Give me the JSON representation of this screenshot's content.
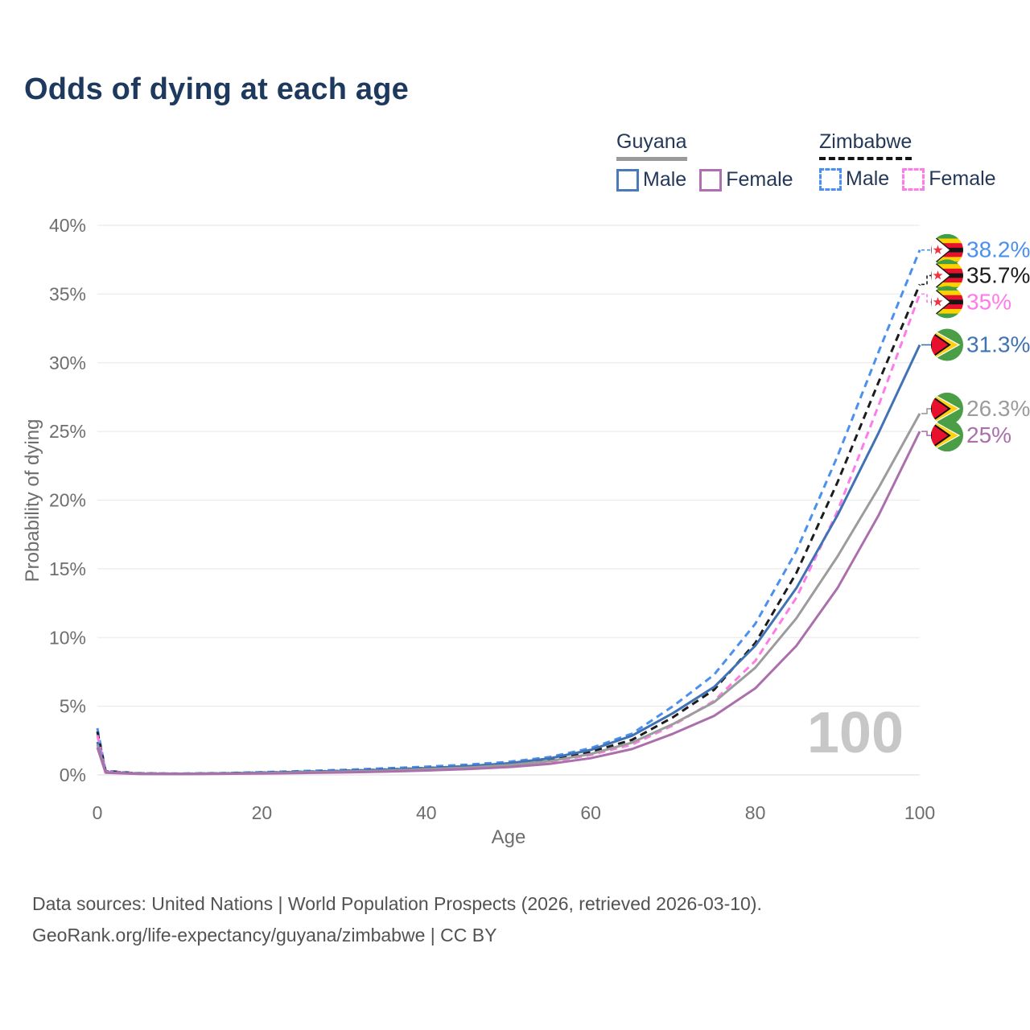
{
  "title": "Odds of dying at each age",
  "legend": {
    "groups": [
      {
        "country": "Guyana",
        "entries": [
          {
            "label": "Male"
          },
          {
            "label": "Female"
          }
        ]
      },
      {
        "country": "Zimbabwe",
        "entries": [
          {
            "label": "Male"
          },
          {
            "label": "Female"
          }
        ]
      }
    ]
  },
  "watermark": "100",
  "footer": {
    "line1": "Data sources: United Nations | World Population Prospects (2026, retrieved 2026-03-10).",
    "line2": "GeoRank.org/life-expectancy/guyana/zimbabwe | CC BY"
  },
  "icons": {
    "zimbabwe_flag": "zimbabwe-flag-icon",
    "guyana_flag": "guyana-flag-icon"
  },
  "colors": {
    "title": "#1d3a5e",
    "guyana_male": "#4173b4",
    "guyana_female": "#ab6fab",
    "guyana_combined": "#9c9c9c",
    "zimbabwe_male": "#4a90f0",
    "zimbabwe_female": "#ff7ce8",
    "zimbabwe_combined": "#1c1c1c",
    "gridline": "#ebebeb",
    "axis_text": "#6e6e6e",
    "watermark": "#c7c7c7",
    "footer_text": "#525252"
  },
  "chart_data": {
    "type": "line",
    "title": "Odds of dying at each age",
    "xlabel": "Age",
    "ylabel": "Probability of dying",
    "xlim": [
      0,
      100
    ],
    "ylim": [
      0,
      40
    ],
    "grid": "horizontal",
    "legend_position": "top-right",
    "x_ticks": [
      0,
      20,
      40,
      60,
      80,
      100
    ],
    "x_tick_labels": [
      "0",
      "20",
      "40",
      "60",
      "80",
      "100"
    ],
    "y_ticks": [
      0,
      5,
      10,
      15,
      20,
      25,
      30,
      35,
      40
    ],
    "y_tick_labels": [
      "0%",
      "5%",
      "10%",
      "15%",
      "20%",
      "25%",
      "30%",
      "35%",
      "40%"
    ],
    "x": [
      0,
      1,
      5,
      10,
      15,
      20,
      25,
      30,
      35,
      40,
      45,
      50,
      55,
      60,
      65,
      70,
      75,
      80,
      85,
      90,
      95,
      100
    ],
    "series": [
      {
        "name": "Zimbabwe Male",
        "country": "Zimbabwe",
        "sex": "male",
        "style": "dashed",
        "color": "#4a90f0",
        "end_label": "38.2%",
        "values": [
          3.4,
          0.3,
          0.12,
          0.1,
          0.13,
          0.2,
          0.28,
          0.37,
          0.48,
          0.6,
          0.75,
          0.95,
          1.3,
          1.95,
          3.0,
          5.0,
          7.3,
          11.0,
          16.3,
          23.2,
          30.8,
          38.2
        ]
      },
      {
        "name": "Zimbabwe",
        "country": "Zimbabwe",
        "sex": "both",
        "style": "dashed",
        "color": "#1c1c1c",
        "end_label": "35.7%",
        "values": [
          3.15,
          0.27,
          0.11,
          0.09,
          0.11,
          0.17,
          0.23,
          0.3,
          0.39,
          0.5,
          0.63,
          0.81,
          1.12,
          1.68,
          2.55,
          4.2,
          6.2,
          9.6,
          14.7,
          21.3,
          28.6,
          35.7
        ]
      },
      {
        "name": "Zimbabwe Female",
        "country": "Zimbabwe",
        "sex": "female",
        "style": "dashed",
        "color": "#ff7ce8",
        "end_label": "35%",
        "values": [
          2.9,
          0.25,
          0.1,
          0.08,
          0.1,
          0.13,
          0.18,
          0.24,
          0.31,
          0.41,
          0.52,
          0.68,
          0.95,
          1.45,
          2.2,
          3.6,
          5.4,
          8.3,
          12.9,
          19.2,
          26.9,
          35.0
        ]
      },
      {
        "name": "Guyana Male",
        "country": "Guyana",
        "sex": "male",
        "style": "solid",
        "color": "#4173b4",
        "end_label": "31.3%",
        "values": [
          2.4,
          0.2,
          0.09,
          0.08,
          0.1,
          0.16,
          0.22,
          0.29,
          0.38,
          0.49,
          0.64,
          0.85,
          1.2,
          1.82,
          2.85,
          4.5,
          6.4,
          9.4,
          13.6,
          18.9,
          24.9,
          31.3
        ]
      },
      {
        "name": "Guyana",
        "country": "Guyana",
        "sex": "both",
        "style": "solid",
        "color": "#9c9c9c",
        "end_label": "26.3%",
        "values": [
          2.2,
          0.18,
          0.08,
          0.07,
          0.09,
          0.13,
          0.18,
          0.24,
          0.31,
          0.41,
          0.53,
          0.71,
          1.0,
          1.52,
          2.35,
          3.7,
          5.3,
          7.8,
          11.4,
          15.9,
          20.9,
          26.3
        ]
      },
      {
        "name": "Guyana Female",
        "country": "Guyana",
        "sex": "female",
        "style": "solid",
        "color": "#ab6fab",
        "end_label": "25%",
        "values": [
          2.0,
          0.16,
          0.07,
          0.06,
          0.08,
          0.1,
          0.14,
          0.18,
          0.24,
          0.32,
          0.42,
          0.57,
          0.8,
          1.22,
          1.88,
          3.0,
          4.3,
          6.3,
          9.4,
          13.6,
          18.9,
          25.0
        ]
      }
    ]
  }
}
